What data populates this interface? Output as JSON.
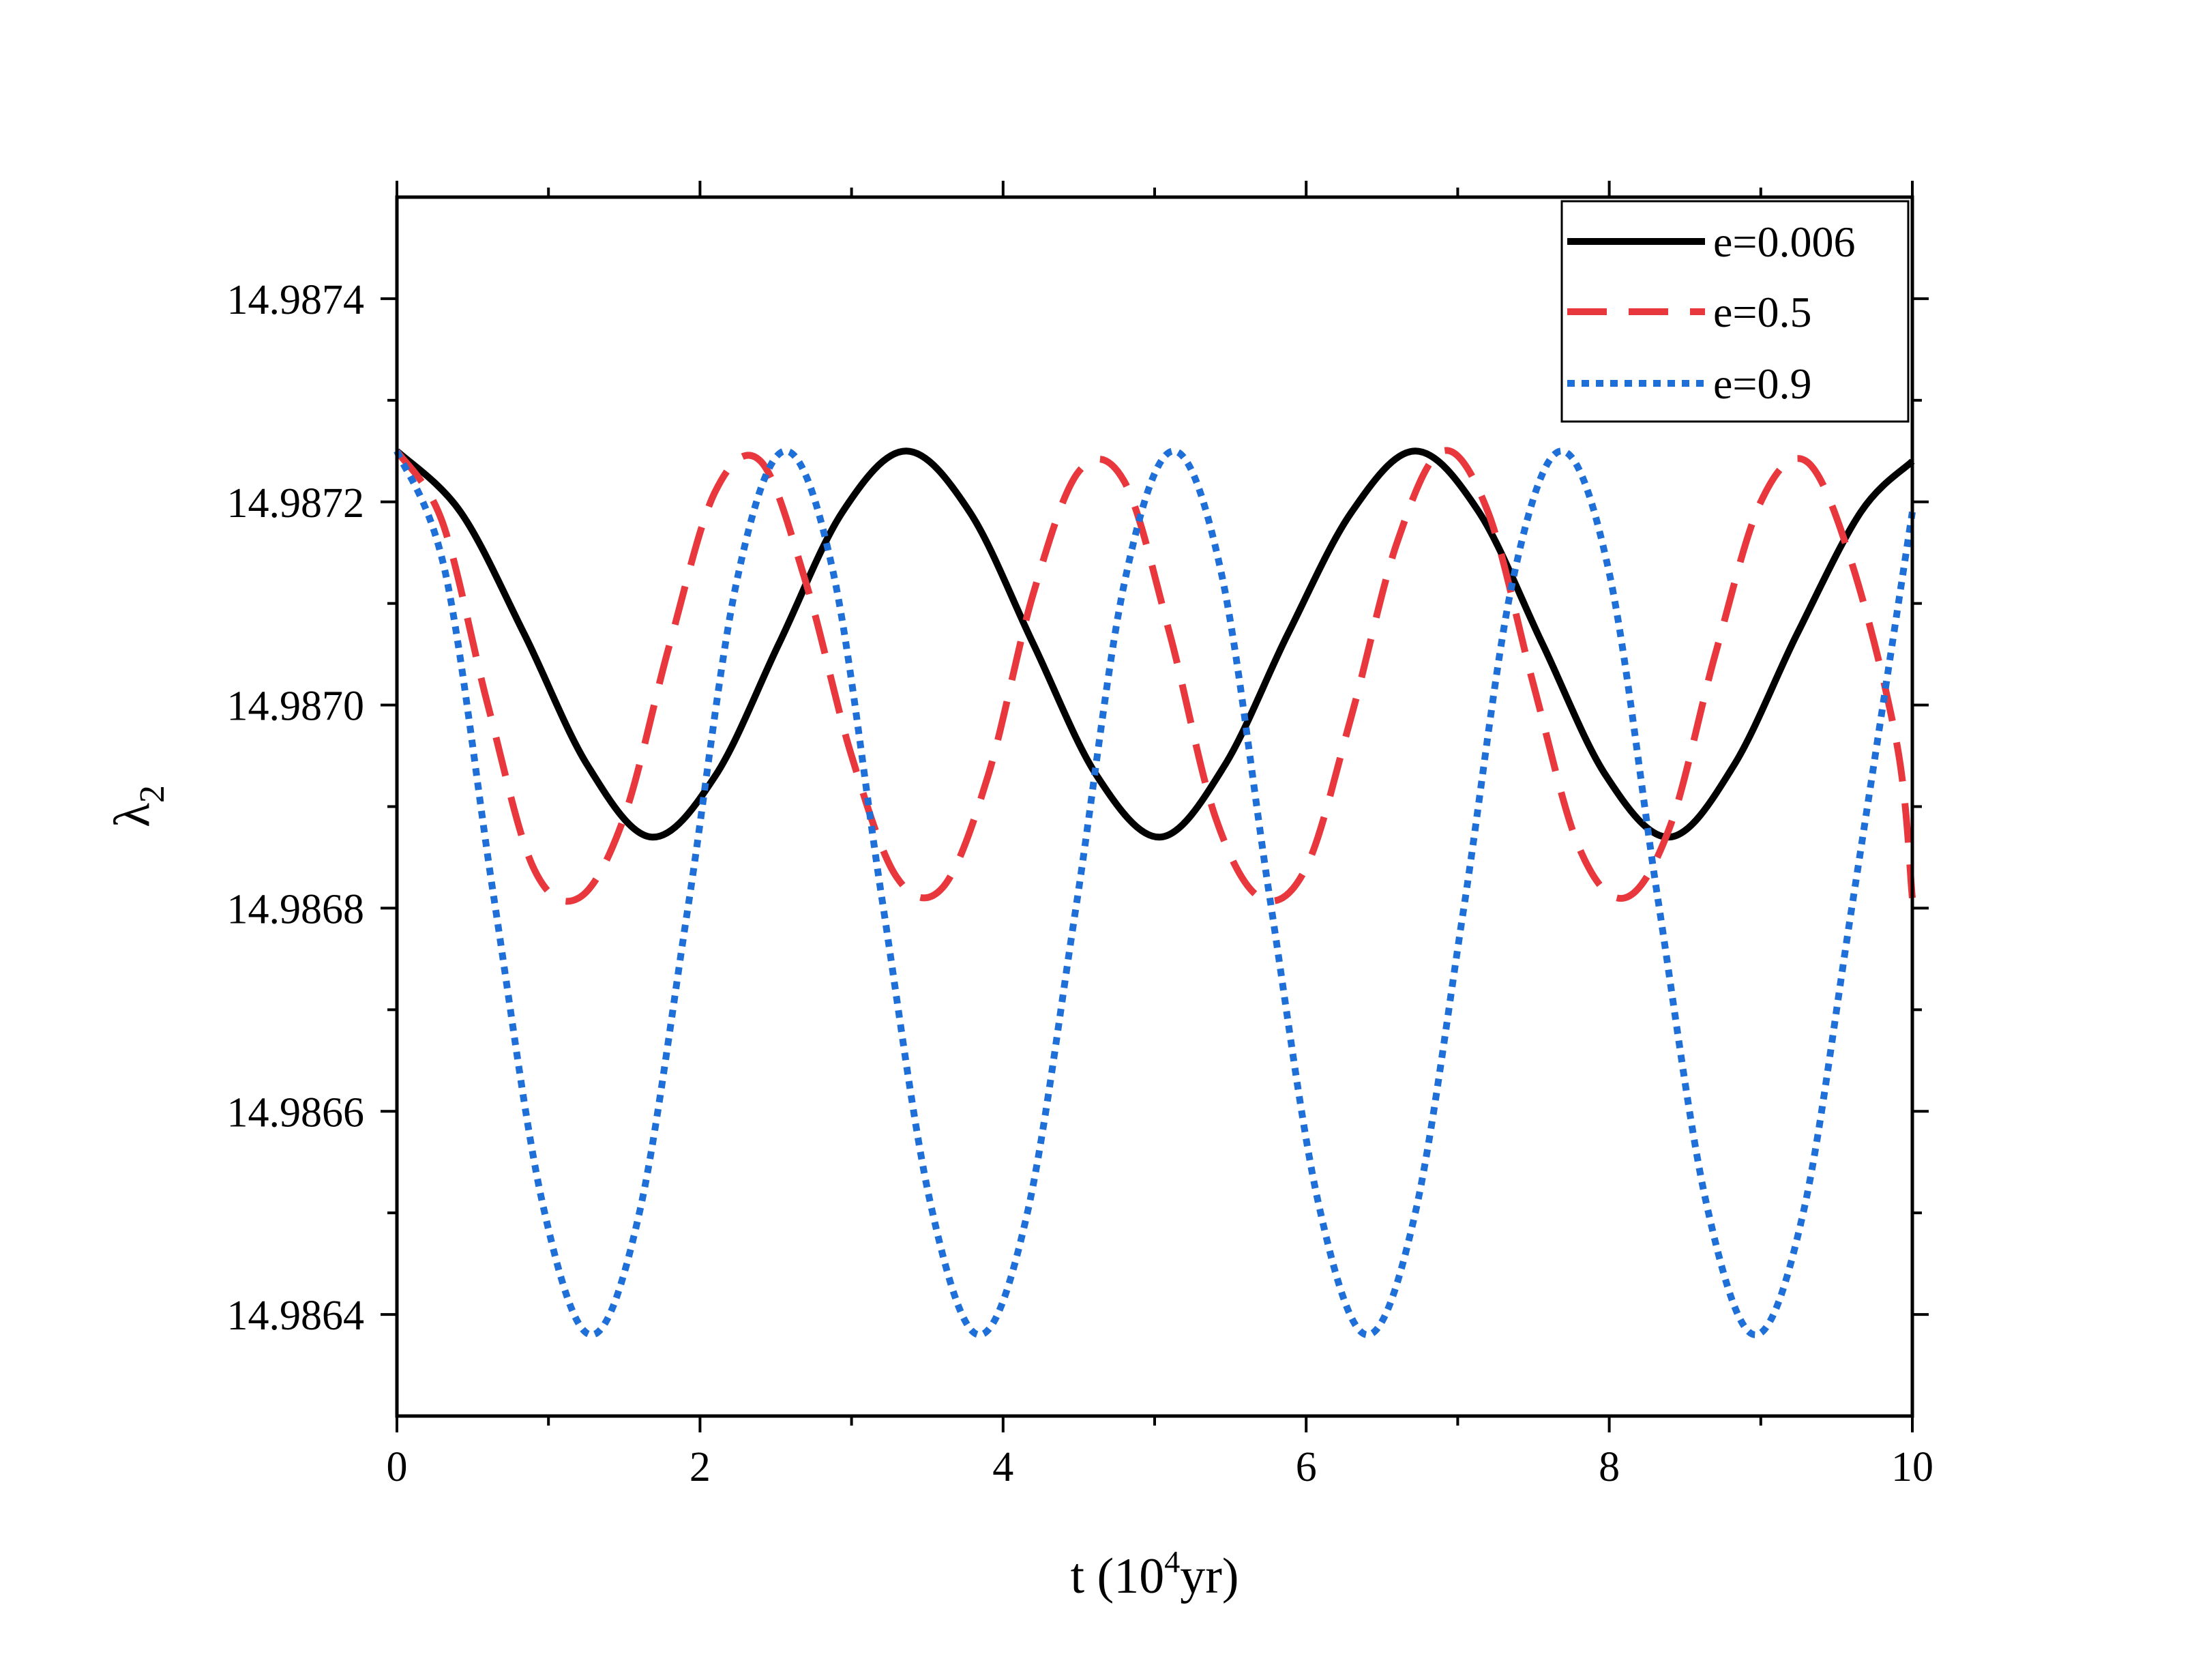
{
  "chart_data": {
    "type": "line",
    "title": "",
    "xlabel": {
      "prefix": "t (10",
      "sup": "4",
      "suffix": "yr)"
    },
    "ylabel": {
      "main": "λ",
      "sub": "2"
    },
    "xlim": [
      0,
      10
    ],
    "ylim": [
      14.9863,
      14.9875
    ],
    "xticks": [
      0,
      2,
      4,
      6,
      8,
      10
    ],
    "xtick_labels": [
      "0",
      "2",
      "4",
      "6",
      "8",
      "10"
    ],
    "xminor_step": 1,
    "yticks": [
      14.9864,
      14.9866,
      14.9868,
      14.987,
      14.9872,
      14.9874
    ],
    "ytick_labels": [
      "14.9864",
      "14.9866",
      "14.9868",
      "14.9870",
      "14.9872",
      "14.9874"
    ],
    "yminor_step": 0.0001,
    "grid": false,
    "legend_position": "top-right",
    "series": [
      {
        "name": "e=0.006",
        "label": "e=0.006",
        "color": "#000000",
        "style": "solid",
        "x": [
          0,
          0.42,
          0.84,
          1.26,
          1.68,
          2.1,
          2.52,
          2.94,
          3.36,
          3.78,
          4.2,
          4.62,
          5.04,
          5.46,
          5.88,
          6.3,
          6.72,
          7.14,
          7.56,
          7.98,
          8.4,
          8.82,
          9.24,
          9.66,
          10.0
        ],
        "y": [
          14.98725,
          14.98719,
          14.98707,
          14.98694,
          14.98687,
          14.98693,
          14.98706,
          14.98719,
          14.98725,
          14.98719,
          14.98706,
          14.98693,
          14.98687,
          14.98694,
          14.98707,
          14.98719,
          14.98725,
          14.98719,
          14.98706,
          14.98693,
          14.98687,
          14.98694,
          14.98707,
          14.98719,
          14.98724
        ]
      },
      {
        "name": "e=0.5",
        "label": "e=0.5",
        "color": "#e8383d",
        "style": "dashed",
        "x": [
          0,
          0.3,
          0.6,
          0.9,
          1.2,
          1.5,
          1.8,
          2.1,
          2.4,
          2.7,
          3.0,
          3.3,
          3.6,
          3.9,
          4.2,
          4.5,
          4.8,
          5.1,
          5.4,
          5.7,
          6.0,
          6.3,
          6.6,
          6.9,
          7.2,
          7.5,
          7.8,
          8.1,
          8.4,
          8.7,
          9.0,
          9.3,
          9.6,
          9.9,
          10.0
        ],
        "y": [
          14.98725,
          14.98718,
          14.987,
          14.98684,
          14.98681,
          14.98689,
          14.98706,
          14.98721,
          14.98724,
          14.98712,
          14.98695,
          14.98683,
          14.98682,
          14.98693,
          14.98711,
          14.98723,
          14.98722,
          14.98707,
          14.98689,
          14.98681,
          14.98684,
          14.98699,
          14.98716,
          14.98725,
          14.98719,
          14.98702,
          14.98686,
          14.98681,
          14.98688,
          14.98705,
          14.9872,
          14.98724,
          14.98714,
          14.98696,
          14.98681
        ]
      },
      {
        "name": "e=0.9",
        "label": "e=0.9",
        "color": "#1f6fd8",
        "style": "dotted",
        "x": [
          0,
          0.32,
          0.64,
          0.96,
          1.28,
          1.6,
          1.92,
          2.24,
          2.56,
          2.88,
          3.2,
          3.52,
          3.84,
          4.16,
          4.48,
          4.8,
          5.12,
          5.44,
          5.76,
          6.08,
          6.4,
          6.72,
          7.04,
          7.36,
          7.68,
          8.0,
          8.32,
          8.64,
          8.96,
          9.28,
          9.6,
          10.0
        ],
        "y": [
          14.98725,
          14.98713,
          14.98681,
          14.98651,
          14.98638,
          14.9865,
          14.9868,
          14.98712,
          14.98725,
          14.98713,
          14.98681,
          14.98651,
          14.98638,
          14.9865,
          14.9868,
          14.98712,
          14.98725,
          14.98713,
          14.98681,
          14.98651,
          14.98638,
          14.9865,
          14.9868,
          14.98712,
          14.98725,
          14.98713,
          14.98681,
          14.98651,
          14.98638,
          14.9865,
          14.9868,
          14.98719
        ]
      }
    ]
  }
}
